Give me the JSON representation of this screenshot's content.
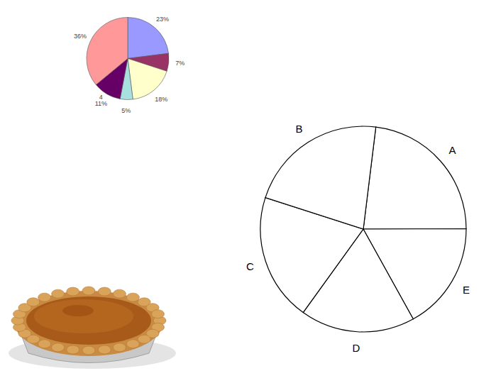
{
  "chart_data": [
    {
      "type": "pie",
      "categories": [
        null,
        null,
        null,
        null,
        "4",
        null
      ],
      "values": [
        23,
        7,
        18,
        5,
        11,
        36
      ],
      "value_labels": [
        "23%",
        "7%",
        "18%",
        "5%",
        "11%",
        "36%"
      ],
      "colors": [
        "#9999ff",
        "#993366",
        "#ffffcc",
        "#a8e0e0",
        "#660066",
        "#ff9999"
      ],
      "data_labels": true
    },
    {
      "type": "pie",
      "categories": [
        "A",
        "E",
        "D",
        "C",
        "B"
      ],
      "values": [
        23,
        17,
        18,
        20,
        22
      ],
      "color": "#ffffff",
      "data_labels": false
    }
  ]
}
